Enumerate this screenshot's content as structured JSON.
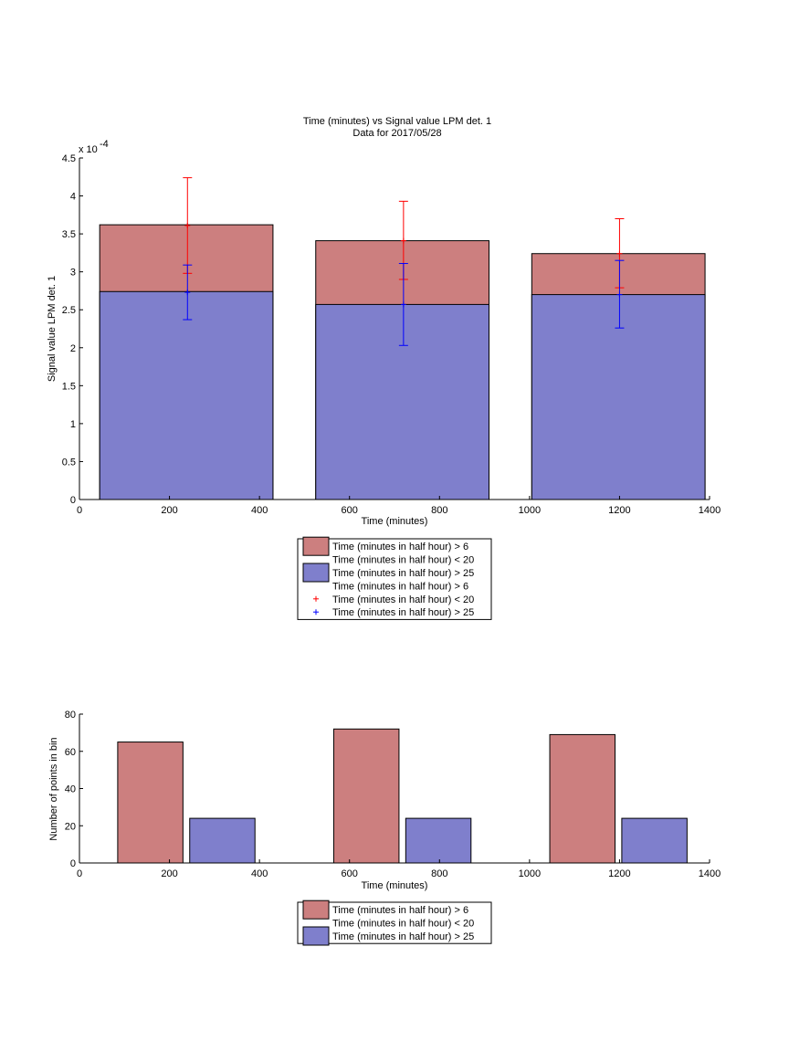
{
  "colors": {
    "red_bar": "#cc7f7f",
    "blue_bar": "#7f7fcc",
    "red_err": "#ff0000",
    "blue_err": "#0000ff",
    "axis": "#000000"
  },
  "chart_data": [
    {
      "type": "bar",
      "title": "Time (minutes) vs Signal value LPM det. 1",
      "subtitle": "Data for 2017/05/28",
      "xlabel": "Time (minutes)",
      "ylabel": "Signal value LPM det. 1",
      "xlim": [
        0,
        1400
      ],
      "ylim": [
        0,
        4.5
      ],
      "y_exponent_label": "x 10",
      "y_exponent_power": "-4",
      "xticks": [
        "0",
        "200",
        "400",
        "600",
        "800",
        "1000",
        "1200",
        "1400"
      ],
      "yticks": [
        "0",
        "0.5",
        "1",
        "1.5",
        "2",
        "2.5",
        "3",
        "3.5",
        "4",
        "4.5"
      ],
      "grid": false,
      "bars": [
        {
          "x_start": 45,
          "x_end": 430,
          "red_value": 3.62,
          "blue_value": 2.74
        },
        {
          "x_start": 525,
          "x_end": 910,
          "red_value": 3.41,
          "blue_value": 2.57
        },
        {
          "x_start": 1005,
          "x_end": 1390,
          "red_value": 3.24,
          "blue_value": 2.7
        }
      ],
      "errorbars": [
        {
          "series": "red",
          "x": 240,
          "y": 3.61,
          "low": 2.98,
          "high": 4.24
        },
        {
          "series": "blue",
          "x": 240,
          "y": 2.73,
          "low": 2.37,
          "high": 3.09
        },
        {
          "series": "red",
          "x": 720,
          "y": 3.41,
          "low": 2.9,
          "high": 3.93
        },
        {
          "series": "blue",
          "x": 720,
          "y": 2.57,
          "low": 2.03,
          "high": 3.11
        },
        {
          "series": "red",
          "x": 1200,
          "y": 3.24,
          "low": 2.79,
          "high": 3.7
        },
        {
          "series": "blue",
          "x": 1200,
          "y": 2.7,
          "low": 2.26,
          "high": 3.15
        }
      ],
      "legend": {
        "placement": "below",
        "entries": [
          {
            "kind": "patch",
            "series": "red",
            "text": "Time (minutes in half hour) > 6"
          },
          {
            "kind": "none",
            "series": "",
            "text": "Time (minutes in half hour) < 20"
          },
          {
            "kind": "patch",
            "series": "blue",
            "text": "Time (minutes in half hour) > 25"
          },
          {
            "kind": "none",
            "series": "",
            "text": "Time (minutes in half hour) > 6"
          },
          {
            "kind": "plus",
            "series": "red",
            "text": "Time (minutes in half hour) < 20"
          },
          {
            "kind": "plus",
            "series": "blue",
            "text": "Time (minutes in half hour) > 25"
          }
        ]
      }
    },
    {
      "type": "bar",
      "title": "",
      "xlabel": "Time (minutes)",
      "ylabel": "Number of points in bin",
      "xlim": [
        0,
        1400
      ],
      "ylim": [
        0,
        80
      ],
      "xticks": [
        "0",
        "200",
        "400",
        "600",
        "800",
        "1000",
        "1200",
        "1400"
      ],
      "yticks": [
        "0",
        "20",
        "40",
        "60",
        "80"
      ],
      "grid": false,
      "bars": [
        {
          "series": "red",
          "x_start": 85,
          "x_end": 230,
          "value": 65
        },
        {
          "series": "blue",
          "x_start": 245,
          "x_end": 390,
          "value": 24
        },
        {
          "series": "red",
          "x_start": 565,
          "x_end": 710,
          "value": 72
        },
        {
          "series": "blue",
          "x_start": 725,
          "x_end": 870,
          "value": 24
        },
        {
          "series": "red",
          "x_start": 1045,
          "x_end": 1190,
          "value": 69
        },
        {
          "series": "blue",
          "x_start": 1205,
          "x_end": 1350,
          "value": 24
        }
      ],
      "legend": {
        "placement": "below",
        "entries": [
          {
            "kind": "patch",
            "series": "red",
            "text": "Time (minutes in half hour) > 6"
          },
          {
            "kind": "none",
            "series": "",
            "text": "Time (minutes in half hour) < 20"
          },
          {
            "kind": "patch",
            "series": "blue",
            "text": "Time (minutes in half hour) > 25"
          }
        ]
      }
    }
  ]
}
